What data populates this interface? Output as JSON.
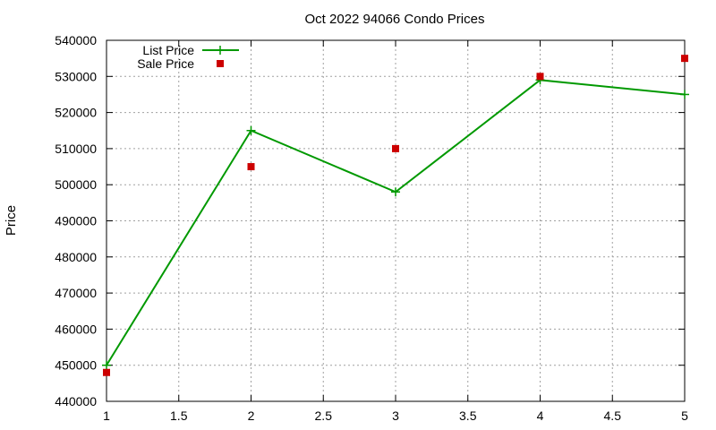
{
  "chart_data": {
    "type": "line",
    "title": "Oct 2022 94066 Condo Prices",
    "xlabel": "",
    "ylabel": "Price",
    "xlim": [
      1,
      5
    ],
    "ylim": [
      440000,
      540000
    ],
    "x_ticks": [
      "1",
      "1.5",
      "2",
      "2.5",
      "3",
      "3.5",
      "4",
      "4.5",
      "5"
    ],
    "y_ticks": [
      "440000",
      "450000",
      "460000",
      "470000",
      "480000",
      "490000",
      "500000",
      "510000",
      "520000",
      "530000",
      "540000"
    ],
    "grid": true,
    "legend_position": "top-left",
    "series": [
      {
        "name": "List Price",
        "style": "line+cross",
        "color": "#009900",
        "x": [
          1,
          2,
          3,
          4,
          5
        ],
        "y": [
          450000,
          515000,
          498000,
          529000,
          525000
        ]
      },
      {
        "name": "Sale Price",
        "style": "square",
        "color": "#cc0000",
        "x": [
          1,
          2,
          3,
          4,
          5
        ],
        "y": [
          448000,
          505000,
          510000,
          530000,
          535000
        ]
      }
    ]
  }
}
